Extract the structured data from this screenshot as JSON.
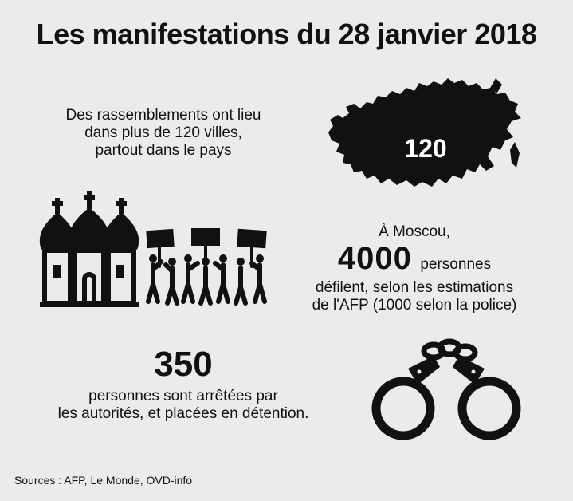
{
  "title": "Les manifestations du 28 janvier 2018",
  "cities": {
    "line1": "Des rassemblements ont lieu",
    "line2": "dans plus de 120 villes,",
    "line3": "partout dans le pays",
    "map_number": "120"
  },
  "moscow": {
    "line1": "À Moscou,",
    "number": "4000",
    "unit": "personnes",
    "line3": "défilent, selon les estimations",
    "line4": "de l'AFP (1000 selon la police)"
  },
  "arrests": {
    "number": "350",
    "line1": "personnes sont arrêtées par",
    "line2": "les autorités, et placées en détention."
  },
  "sources": "Sources : AFP, Le Monde, OVD-info",
  "icons": {
    "map": "russia-map-icon",
    "church": "orthodox-church-icon",
    "protesters": "protesters-icon",
    "handcuffs": "handcuffs-icon"
  },
  "colors": {
    "background": "#ebebeb",
    "ink": "#111111"
  }
}
